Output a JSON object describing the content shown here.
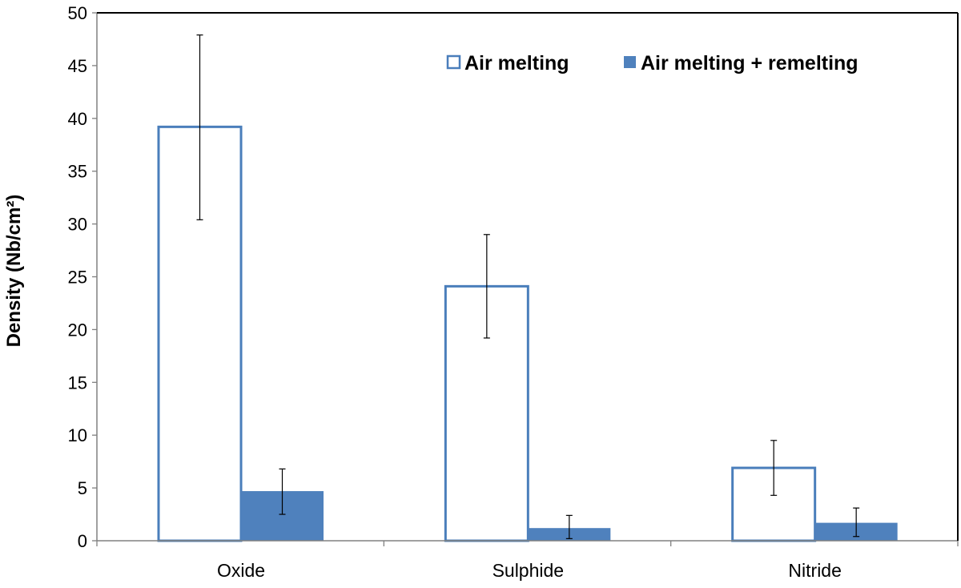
{
  "chart_data": {
    "type": "bar",
    "title": "",
    "xlabel": "",
    "ylabel": "Density (Nb/cm²)",
    "categories": [
      "Oxide",
      "Sulphide",
      "Nitride"
    ],
    "ylim": [
      0,
      50
    ],
    "yticks": [
      0,
      5,
      10,
      15,
      20,
      25,
      30,
      35,
      40,
      45,
      50
    ],
    "grid": false,
    "legend_position": "top-right",
    "series": [
      {
        "name": "Air melting",
        "style": "outline",
        "color": "#4a7ebb",
        "values": [
          39.2,
          24.1,
          6.9
        ],
        "error_low": [
          30.4,
          19.2,
          4.3
        ],
        "error_high": [
          47.9,
          29.0,
          9.5
        ]
      },
      {
        "name": "Air melting + remelting",
        "style": "filled",
        "color": "#4f81bd",
        "values": [
          4.7,
          1.2,
          1.7
        ],
        "error_low": [
          2.5,
          0.2,
          0.4
        ],
        "error_high": [
          6.8,
          2.4,
          3.1
        ]
      }
    ]
  }
}
